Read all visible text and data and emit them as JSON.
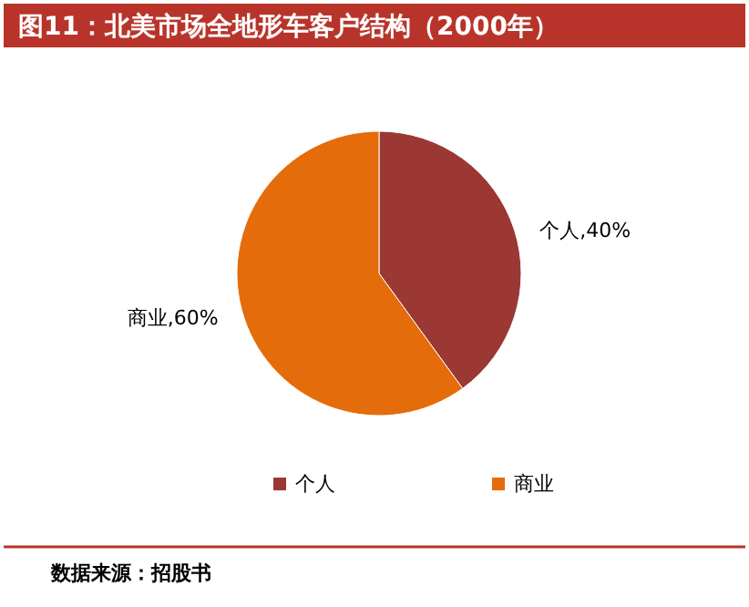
{
  "chart_data": {
    "type": "pie",
    "title": "图11：北美市场全地形车客户结构（2000年）",
    "categories": [
      "个人",
      "商业"
    ],
    "values": [
      40,
      60
    ],
    "value_labels": [
      "个人,40%",
      "商业,60%"
    ],
    "colors": [
      "#9b3834",
      "#e46c0a"
    ],
    "legend": "bottom",
    "annotations": [
      "数据来源：招股书"
    ]
  }
}
